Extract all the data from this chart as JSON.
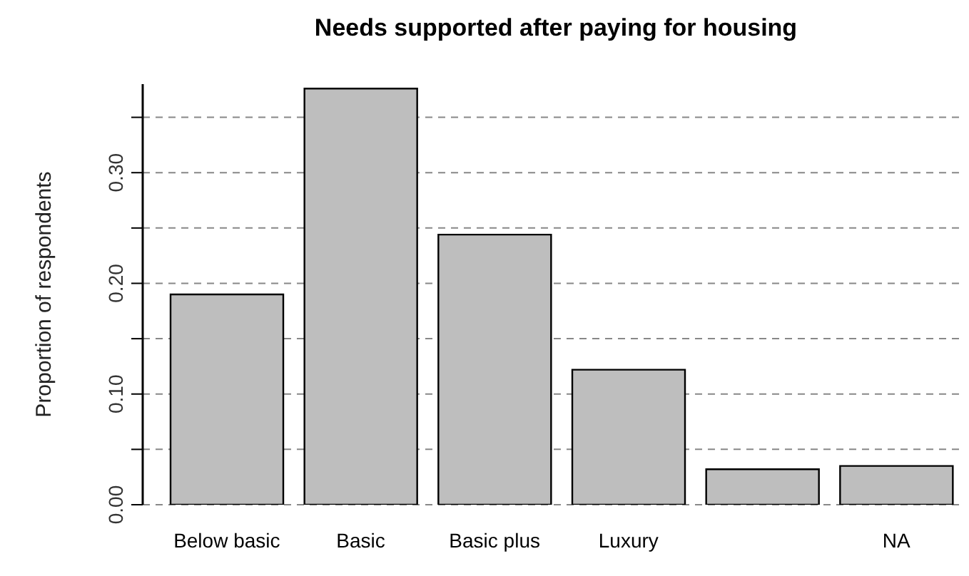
{
  "chart_data": {
    "type": "bar",
    "title": "Needs supported after paying for housing",
    "ylabel": "Proportion of respondents",
    "categories": [
      "Below basic",
      "Basic",
      "Basic plus",
      "Luxury",
      null,
      "NA"
    ],
    "values": [
      0.19,
      0.376,
      0.244,
      0.122,
      0.032,
      0.035
    ],
    "color": "#bebebe",
    "ylim": [
      0,
      0.38
    ],
    "yticks": [
      {
        "value": 0,
        "label": "0.00"
      },
      {
        "value": 0.05,
        "label": null
      },
      {
        "value": 0.1,
        "label": "0.10"
      },
      {
        "value": 0.15,
        "label": null
      },
      {
        "value": 0.2,
        "label": "0.20"
      },
      {
        "value": 0.25,
        "label": null
      },
      {
        "value": 0.3,
        "label": "0.30"
      },
      {
        "value": 0.35,
        "label": null
      }
    ],
    "grid": "y"
  }
}
